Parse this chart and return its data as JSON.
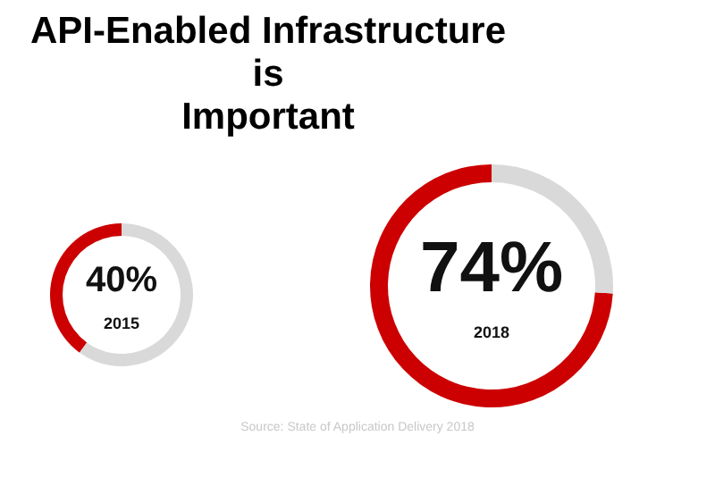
{
  "chart_data": [
    {
      "type": "donut",
      "title": "API-Enabled Infrastructure\nis\nImportant",
      "categories": [
        "2015",
        null
      ],
      "values": [
        40,
        60
      ],
      "value_labels": [
        "40%",
        null
      ],
      "colors": [
        "#cc0000",
        "#d9d9d9"
      ]
    },
    {
      "type": "donut",
      "categories": [
        "2018",
        null
      ],
      "values": [
        74,
        26
      ],
      "value_labels": [
        "74%",
        null
      ],
      "colors": [
        "#cc0000",
        "#d9d9d9"
      ],
      "annotations": [
        "Source: State of Application Delivery 2018"
      ]
    }
  ]
}
